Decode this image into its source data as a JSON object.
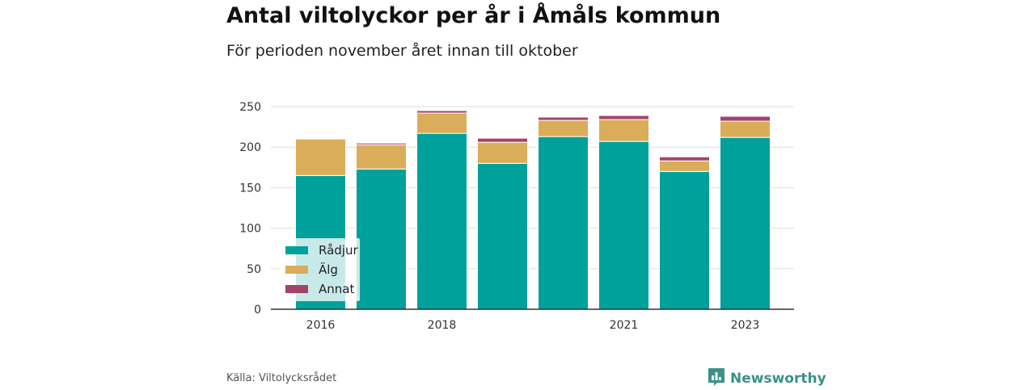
{
  "title": "Antal viltolyckor per år i Åmåls kommun",
  "subtitle": "För perioden november året innan till oktober",
  "source": "Källa: Viltolycksrådet",
  "brand": "Newsworthy",
  "colors": {
    "radjur": "#00a19a",
    "alg": "#d9ad5a",
    "annat": "#a3436a"
  },
  "chart_data": {
    "type": "bar",
    "stacked": true,
    "categories": [
      "2016",
      "2017",
      "2018",
      "2019",
      "2020",
      "2021",
      "2022",
      "2023"
    ],
    "x_tick_labels": [
      "2016",
      "",
      "2018",
      "",
      "",
      "2021",
      "",
      "2023"
    ],
    "series": [
      {
        "name": "Rådjur",
        "values": [
          165,
          173,
          217,
          180,
          213,
          207,
          170,
          212
        ]
      },
      {
        "name": "Älg",
        "values": [
          45,
          30,
          25,
          26,
          20,
          27,
          13,
          20
        ]
      },
      {
        "name": "Annat",
        "values": [
          0,
          2,
          3,
          5,
          4,
          5,
          5,
          6
        ]
      }
    ],
    "ylim": [
      0,
      250
    ],
    "yticks": [
      0,
      50,
      100,
      150,
      200,
      250
    ],
    "grid": true,
    "legend_position": "bottom-left"
  }
}
